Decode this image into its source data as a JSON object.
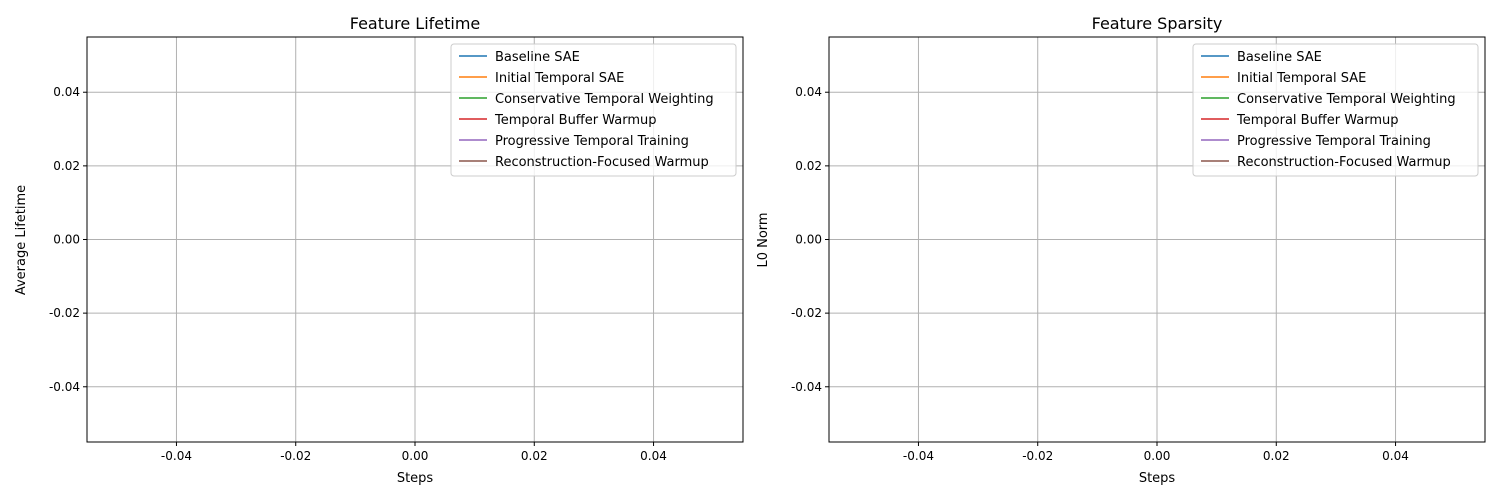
{
  "chart_data": [
    {
      "type": "line",
      "title": "Feature Lifetime",
      "xlabel": "Steps",
      "ylabel": "Average Lifetime",
      "xlim": [
        -0.055,
        0.055
      ],
      "ylim": [
        -0.055,
        0.055
      ],
      "xticks": [
        "-0.04",
        "-0.02",
        "0.00",
        "0.02",
        "0.04"
      ],
      "xtick_values": [
        -0.04,
        -0.02,
        0.0,
        0.02,
        0.04
      ],
      "yticks": [
        "-0.04",
        "-0.02",
        "0.00",
        "0.02",
        "0.04"
      ],
      "ytick_values": [
        -0.04,
        -0.02,
        0.0,
        0.02,
        0.04
      ],
      "grid": true,
      "legend_position": "top-right",
      "series": [
        {
          "name": "Baseline SAE",
          "color": "#1f77b4",
          "x": [],
          "y": []
        },
        {
          "name": "Initial Temporal SAE",
          "color": "#ff7f0e",
          "x": [],
          "y": []
        },
        {
          "name": "Conservative Temporal Weighting",
          "color": "#2ca02c",
          "x": [],
          "y": []
        },
        {
          "name": "Temporal Buffer Warmup",
          "color": "#d62728",
          "x": [],
          "y": []
        },
        {
          "name": "Progressive Temporal Training",
          "color": "#9467bd",
          "x": [],
          "y": []
        },
        {
          "name": "Reconstruction-Focused Warmup",
          "color": "#8c564b",
          "x": [],
          "y": []
        }
      ]
    },
    {
      "type": "line",
      "title": "Feature Sparsity",
      "xlabel": "Steps",
      "ylabel": "L0 Norm",
      "xlim": [
        -0.055,
        0.055
      ],
      "ylim": [
        -0.055,
        0.055
      ],
      "xticks": [
        "-0.04",
        "-0.02",
        "0.00",
        "0.02",
        "0.04"
      ],
      "xtick_values": [
        -0.04,
        -0.02,
        0.0,
        0.02,
        0.04
      ],
      "yticks": [
        "-0.04",
        "-0.02",
        "0.00",
        "0.02",
        "0.04"
      ],
      "ytick_values": [
        -0.04,
        -0.02,
        0.0,
        0.02,
        0.04
      ],
      "grid": true,
      "legend_position": "top-right",
      "series": [
        {
          "name": "Baseline SAE",
          "color": "#1f77b4",
          "x": [],
          "y": []
        },
        {
          "name": "Initial Temporal SAE",
          "color": "#ff7f0e",
          "x": [],
          "y": []
        },
        {
          "name": "Conservative Temporal Weighting",
          "color": "#2ca02c",
          "x": [],
          "y": []
        },
        {
          "name": "Temporal Buffer Warmup",
          "color": "#d62728",
          "x": [],
          "y": []
        },
        {
          "name": "Progressive Temporal Training",
          "color": "#9467bd",
          "x": [],
          "y": []
        },
        {
          "name": "Reconstruction-Focused Warmup",
          "color": "#8c564b",
          "x": [],
          "y": []
        }
      ]
    }
  ]
}
